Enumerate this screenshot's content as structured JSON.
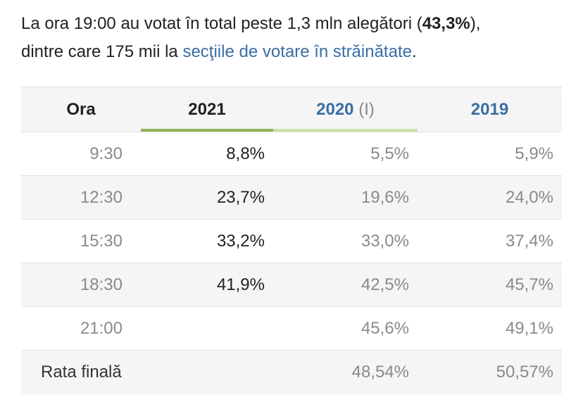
{
  "intro": {
    "part1": "La ora 19:00 au votat în total peste 1,3 mln alegători (",
    "bold": "43,3%",
    "part2": "),",
    "part3": "dintre care 175 mii la ",
    "link": "secţiile de votare în străinătate",
    "part4": "."
  },
  "table": {
    "headers": {
      "ora": "Ora",
      "y2021": "2021",
      "y2020": "2020",
      "y2020_note": "(I)",
      "y2019": "2019"
    },
    "rows": [
      {
        "time": "9:30",
        "y2021": "8,8%",
        "y2020": "5,5%",
        "y2019": "5,9%"
      },
      {
        "time": "12:30",
        "y2021": "23,7%",
        "y2020": "19,6%",
        "y2019": "24,0%"
      },
      {
        "time": "15:30",
        "y2021": "33,2%",
        "y2020": "33,0%",
        "y2019": "37,4%"
      },
      {
        "time": "18:30",
        "y2021": "41,9%",
        "y2020": "42,5%",
        "y2019": "45,7%"
      },
      {
        "time": "21:00",
        "y2021": "",
        "y2020": "45,6%",
        "y2019": "49,1%"
      }
    ],
    "final": {
      "label": "Rata finală",
      "y2021": "",
      "y2020": "48,54%",
      "y2019": "50,57%"
    }
  },
  "colors": {
    "link": "#3a6ea5",
    "accent_2021": "#8fb55a",
    "accent_2020": "#cddfa8",
    "stripe": "#f5f5f5"
  }
}
